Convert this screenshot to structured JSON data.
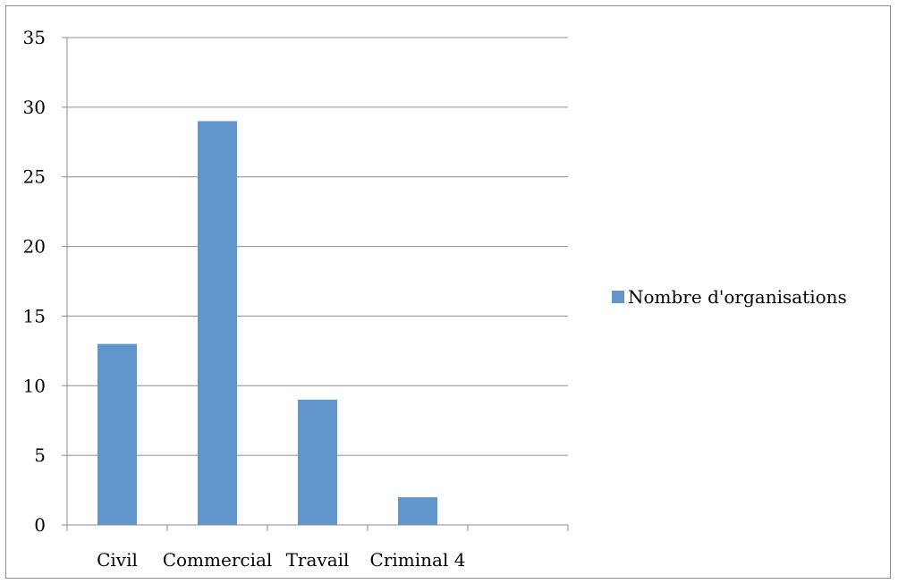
{
  "chart_data": {
    "type": "bar",
    "categories": [
      "Civil",
      "Commercial",
      "Travail",
      "Criminal 4"
    ],
    "series": [
      {
        "name": "Nombre d'organisations",
        "values": [
          13,
          29,
          9,
          2
        ],
        "color": "#6196CC"
      }
    ],
    "title": "",
    "xlabel": "",
    "ylabel": "",
    "ylim": [
      0,
      35
    ],
    "yticks": [
      0,
      5,
      10,
      15,
      20,
      25,
      30,
      35
    ],
    "grid": true,
    "legend_position": "right"
  }
}
